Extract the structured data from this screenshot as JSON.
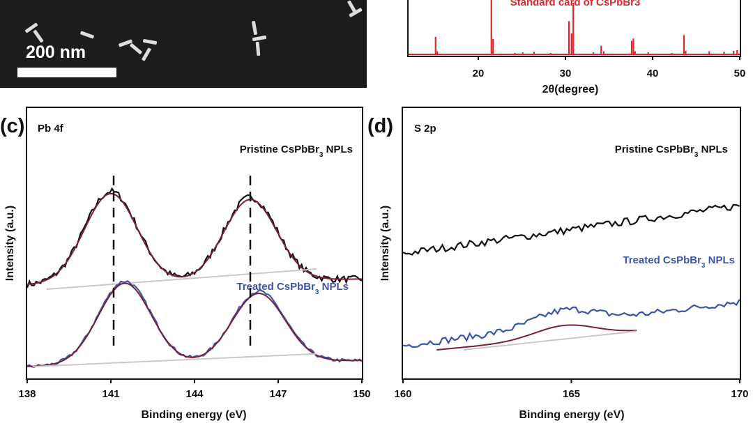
{
  "sem_panel": {
    "scale_bar_label": "200 nm"
  },
  "chart_data": [
    {
      "id": "xrd",
      "type": "bar",
      "title": "",
      "xlabel": "2θ(degree)",
      "ylabel": "",
      "xlim": [
        12,
        50
      ],
      "ylim": [
        0,
        100
      ],
      "xticks": [
        20,
        30,
        40,
        50
      ],
      "legend_entry": "Standard card of CsPbBr3",
      "color": "#e0262a",
      "x": [
        15.1,
        15.3,
        21.5,
        21.7,
        24.2,
        25.1,
        26.4,
        28.3,
        30.4,
        30.7,
        30.9,
        33.2,
        34.1,
        34.4,
        37.6,
        37.8,
        38.0,
        39.5,
        42.2,
        43.6,
        43.8,
        46.5,
        48.2,
        49.3,
        49.7
      ],
      "y": [
        34,
        8,
        100,
        30,
        5,
        6,
        7,
        5,
        62,
        40,
        95,
        6,
        18,
        8,
        27,
        31,
        8,
        6,
        5,
        37,
        9,
        8,
        7,
        9,
        10
      ]
    },
    {
      "id": "c",
      "type": "line",
      "panel_label": "(c)",
      "title": "Pb 4f",
      "xlabel": "Binding energy (eV)",
      "ylabel": "Intensity (a.u.)",
      "xlim": [
        138,
        150
      ],
      "ylim": [
        0,
        100
      ],
      "xticks": [
        138,
        141,
        144,
        147,
        150
      ],
      "annotations": [
        {
          "text": "Pristine CsPbBr",
          "sub": "3",
          "tail": " NPLs",
          "color": "#111111"
        },
        {
          "text": "Treated CsPbBr",
          "sub": "3",
          "tail": " NPLs",
          "color": "#3b55a8"
        }
      ],
      "markers": [
        141.1,
        146.0
      ],
      "series": [
        {
          "name": "Pristine raw",
          "color": "#111111",
          "baseline": 42,
          "peaks": [
            {
              "center": 141.0,
              "height": 44,
              "width": 0.95
            },
            {
              "center": 146.0,
              "height": 40,
              "width": 0.95
            }
          ],
          "noise": 1.6
        },
        {
          "name": "Pristine fit",
          "color": "#7a1f3a",
          "baseline": 42,
          "peaks": [
            {
              "center": 141.0,
              "height": 43,
              "width": 0.95
            },
            {
              "center": 146.0,
              "height": 39,
              "width": 0.95
            }
          ],
          "noise": 0
        },
        {
          "name": "Pristine background",
          "color": "#c8c8c8",
          "baseline": 40,
          "peaks": [],
          "noise": 0,
          "slope": 1.0
        },
        {
          "name": "Treated raw",
          "color": "#3b55a8",
          "baseline": 3,
          "peaks": [
            {
              "center": 141.5,
              "height": 40,
              "width": 0.95
            },
            {
              "center": 146.3,
              "height": 34,
              "width": 0.95
            }
          ],
          "noise": 0.8
        },
        {
          "name": "Treated fit",
          "color": "#7a1f3a",
          "baseline": 3,
          "peaks": [
            {
              "center": 141.5,
              "height": 39,
              "width": 0.95
            },
            {
              "center": 146.3,
              "height": 33,
              "width": 0.95
            }
          ],
          "noise": 0
        },
        {
          "name": "Treated background",
          "color": "#c8c8c8",
          "baseline": 3,
          "peaks": [],
          "noise": 0,
          "slope": 0.6
        }
      ]
    },
    {
      "id": "d",
      "type": "line",
      "panel_label": "(d)",
      "title": "S 2p",
      "xlabel": "Binding energy (eV)",
      "ylabel": "Intensity (a.u.)",
      "xlim": [
        160,
        170
      ],
      "ylim": [
        0,
        100
      ],
      "xticks": [
        160,
        165,
        170
      ],
      "annotations": [
        {
          "text": "Pristine CsPbBr",
          "sub": "3",
          "tail": " NPLs",
          "color": "#111111"
        },
        {
          "text": "Treated CsPbBr",
          "sub": "3",
          "tail": " NPLs",
          "color": "#3b55a8"
        }
      ],
      "series": [
        {
          "name": "Pristine raw",
          "color": "#111111",
          "start": 57,
          "end": 80,
          "noise": 1.8
        },
        {
          "name": "Treated raw",
          "color": "#3b55a8",
          "start": 13,
          "end": 34,
          "noise": 1.6,
          "bump": {
            "center": 164.8,
            "height": 7,
            "width": 0.9
          }
        },
        {
          "name": "Treated fit",
          "color": "#7a1f3a",
          "xrange": [
            161.0,
            167.0
          ],
          "start": 11,
          "end": 20,
          "bump": {
            "center": 164.8,
            "height": 6,
            "width": 0.9
          }
        },
        {
          "name": "Treated background",
          "color": "#c8c8c8",
          "xrange": [
            161.8,
            167.0
          ],
          "start": 11,
          "end": 20
        }
      ]
    }
  ]
}
